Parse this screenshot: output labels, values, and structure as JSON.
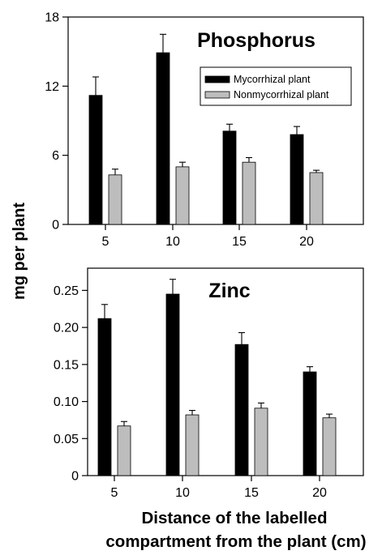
{
  "figure": {
    "ylabel": "mg per plant",
    "xlabel_line1": "Distance of the labelled",
    "xlabel_line2": "compartment from the plant (cm)"
  },
  "colors": {
    "mycorrhizal": "#000000",
    "nonmycorrhizal": "#bdbdbd",
    "axis": "#000000"
  },
  "chart_data": [
    {
      "type": "bar",
      "title": "Phosphorus",
      "categories": [
        "5",
        "10",
        "15",
        "20"
      ],
      "ylim": [
        0,
        18
      ],
      "yticks": [
        0,
        6,
        12,
        18
      ],
      "ytick_labels": [
        "0",
        "6",
        "12",
        "18"
      ],
      "legend": "top-right",
      "series": [
        {
          "name": "Mycorrhizal plant",
          "values": [
            11.2,
            14.9,
            8.1,
            7.8
          ],
          "errors": [
            1.6,
            1.6,
            0.6,
            0.7
          ]
        },
        {
          "name": "Nonmycorrhizal plant",
          "values": [
            4.3,
            5.0,
            5.4,
            4.5
          ],
          "errors": [
            0.5,
            0.4,
            0.4,
            0.2
          ]
        }
      ]
    },
    {
      "type": "bar",
      "title": "Zinc",
      "categories": [
        "5",
        "10",
        "15",
        "20"
      ],
      "ylim": [
        0,
        0.28
      ],
      "yticks": [
        0,
        0.05,
        0.1,
        0.15,
        0.2,
        0.25
      ],
      "ytick_labels": [
        "0",
        "0.05",
        "0.10",
        "0.15",
        "0.20",
        "0.25"
      ],
      "series": [
        {
          "name": "Mycorrhizal plant",
          "values": [
            0.212,
            0.245,
            0.177,
            0.14
          ],
          "errors": [
            0.019,
            0.02,
            0.016,
            0.007
          ]
        },
        {
          "name": "Nonmycorrhizal plant",
          "values": [
            0.067,
            0.082,
            0.091,
            0.078
          ],
          "errors": [
            0.006,
            0.006,
            0.007,
            0.005
          ]
        }
      ]
    }
  ]
}
